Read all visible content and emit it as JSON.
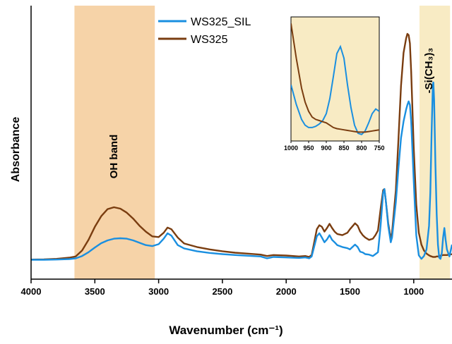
{
  "chart_data": {
    "type": "line",
    "xlabel": "Wavenumber (cm⁻¹)",
    "ylabel": "Absorbance",
    "xlim": [
      4000,
      700
    ],
    "x_reversed": true,
    "ylim": [
      0,
      1
    ],
    "y_ticks_shown": false,
    "x_ticks": [
      4000,
      3500,
      3000,
      2500,
      2000,
      1500,
      1000
    ],
    "grid": false,
    "legend_position": "top-center",
    "bands": [
      {
        "label": "OH band",
        "from": 3660,
        "to": 3030,
        "color": "#f6d3a8"
      },
      {
        "label": "-Si(CH₃)₃",
        "from": 955,
        "to": 715,
        "color": "#f8ebc4"
      }
    ],
    "series": [
      {
        "name": "WS325_SIL",
        "color": "#1a8fe0",
        "x": [
          4000,
          3900,
          3800,
          3700,
          3650,
          3600,
          3550,
          3500,
          3450,
          3400,
          3350,
          3300,
          3250,
          3200,
          3150,
          3100,
          3050,
          3000,
          2960,
          2930,
          2900,
          2850,
          2800,
          2700,
          2600,
          2500,
          2400,
          2300,
          2200,
          2150,
          2100,
          2000,
          1900,
          1850,
          1820,
          1800,
          1760,
          1740,
          1720,
          1700,
          1680,
          1660,
          1640,
          1620,
          1600,
          1560,
          1520,
          1500,
          1460,
          1440,
          1420,
          1400,
          1380,
          1350,
          1320,
          1300,
          1280,
          1260,
          1240,
          1230,
          1220,
          1200,
          1180,
          1170,
          1160,
          1140,
          1120,
          1100,
          1080,
          1060,
          1050,
          1040,
          1030,
          1020,
          1000,
          980,
          960,
          940,
          920,
          900,
          880,
          870,
          860,
          850,
          846,
          840,
          830,
          820,
          810,
          800,
          790,
          780,
          770,
          760,
          750,
          740,
          720,
          700
        ],
        "y": [
          0.046,
          0.046,
          0.047,
          0.049,
          0.052,
          0.062,
          0.078,
          0.098,
          0.116,
          0.128,
          0.135,
          0.137,
          0.135,
          0.128,
          0.118,
          0.108,
          0.104,
          0.112,
          0.135,
          0.158,
          0.148,
          0.108,
          0.094,
          0.082,
          0.075,
          0.07,
          0.066,
          0.063,
          0.06,
          0.052,
          0.058,
          0.056,
          0.054,
          0.056,
          0.052,
          0.06,
          0.145,
          0.158,
          0.14,
          0.12,
          0.132,
          0.15,
          0.13,
          0.12,
          0.108,
          0.1,
          0.095,
          0.09,
          0.11,
          0.1,
          0.08,
          0.077,
          0.07,
          0.068,
          0.062,
          0.07,
          0.078,
          0.19,
          0.33,
          0.345,
          0.3,
          0.19,
          0.12,
          0.14,
          0.19,
          0.29,
          0.43,
          0.56,
          0.63,
          0.68,
          0.7,
          0.715,
          0.7,
          0.63,
          0.38,
          0.15,
          0.065,
          0.05,
          0.062,
          0.09,
          0.19,
          0.33,
          0.58,
          0.785,
          0.795,
          0.72,
          0.45,
          0.24,
          0.11,
          0.055,
          0.05,
          0.075,
          0.14,
          0.18,
          0.13,
          0.09,
          0.06,
          0.11
        ]
      },
      {
        "name": "WS325",
        "color": "#7a3d10",
        "x": [
          4000,
          3900,
          3800,
          3700,
          3650,
          3600,
          3550,
          3500,
          3450,
          3400,
          3350,
          3300,
          3250,
          3200,
          3150,
          3100,
          3050,
          3000,
          2960,
          2930,
          2900,
          2850,
          2800,
          2700,
          2600,
          2500,
          2400,
          2300,
          2200,
          2150,
          2100,
          2000,
          1900,
          1850,
          1820,
          1800,
          1760,
          1740,
          1720,
          1700,
          1680,
          1660,
          1640,
          1620,
          1600,
          1560,
          1520,
          1500,
          1460,
          1440,
          1420,
          1400,
          1380,
          1350,
          1320,
          1300,
          1280,
          1260,
          1240,
          1230,
          1220,
          1200,
          1180,
          1170,
          1160,
          1140,
          1120,
          1100,
          1080,
          1060,
          1050,
          1040,
          1030,
          1020,
          1000,
          980,
          960,
          940,
          920,
          900,
          880,
          870,
          860,
          850,
          846,
          840,
          830,
          820,
          810,
          800,
          790,
          780,
          770,
          760,
          750,
          740,
          720,
          700
        ],
        "y": [
          0.047,
          0.048,
          0.05,
          0.055,
          0.06,
          0.085,
          0.13,
          0.185,
          0.23,
          0.26,
          0.268,
          0.262,
          0.245,
          0.22,
          0.19,
          0.165,
          0.145,
          0.142,
          0.16,
          0.182,
          0.175,
          0.14,
          0.115,
          0.1,
          0.09,
          0.082,
          0.076,
          0.072,
          0.068,
          0.062,
          0.066,
          0.064,
          0.06,
          0.062,
          0.058,
          0.066,
          0.175,
          0.192,
          0.185,
          0.165,
          0.18,
          0.198,
          0.18,
          0.165,
          0.155,
          0.15,
          0.16,
          0.175,
          0.2,
          0.19,
          0.165,
          0.15,
          0.14,
          0.13,
          0.135,
          0.15,
          0.17,
          0.26,
          0.34,
          0.345,
          0.3,
          0.2,
          0.135,
          0.16,
          0.22,
          0.34,
          0.55,
          0.78,
          0.92,
          0.98,
          1.0,
          0.995,
          0.96,
          0.84,
          0.52,
          0.28,
          0.16,
          0.11,
          0.085,
          0.072,
          0.065,
          0.062,
          0.06,
          0.058,
          0.058,
          0.058,
          0.058,
          0.06,
          0.06,
          0.062,
          0.064,
          0.065,
          0.066,
          0.066,
          0.066,
          0.066,
          0.068,
          0.07
        ]
      }
    ],
    "inset": {
      "xlim": [
        1000,
        750
      ],
      "x_reversed": true,
      "x_ticks": [
        1000,
        950,
        900,
        850,
        800,
        750
      ],
      "background": "#f8ebc4",
      "series": [
        {
          "name": "WS325_SIL",
          "color": "#1a8fe0",
          "x": [
            1000,
            985,
            970,
            960,
            950,
            940,
            930,
            920,
            910,
            900,
            890,
            880,
            870,
            860,
            850,
            840,
            830,
            820,
            810,
            800,
            790,
            780,
            770,
            760,
            750
          ],
          "y": [
            0.45,
            0.28,
            0.15,
            0.1,
            0.08,
            0.08,
            0.09,
            0.11,
            0.14,
            0.2,
            0.33,
            0.52,
            0.72,
            0.78,
            0.68,
            0.45,
            0.25,
            0.1,
            0.03,
            0.02,
            0.05,
            0.12,
            0.2,
            0.24,
            0.22
          ]
        },
        {
          "name": "WS325",
          "color": "#7a3d10",
          "x": [
            1000,
            985,
            970,
            960,
            950,
            940,
            930,
            920,
            910,
            900,
            890,
            880,
            870,
            860,
            850,
            840,
            830,
            820,
            810,
            800,
            790,
            780,
            770,
            760,
            750
          ],
          "y": [
            0.98,
            0.68,
            0.42,
            0.3,
            0.22,
            0.17,
            0.15,
            0.14,
            0.13,
            0.12,
            0.1,
            0.08,
            0.07,
            0.065,
            0.06,
            0.055,
            0.05,
            0.045,
            0.04,
            0.04,
            0.04,
            0.045,
            0.05,
            0.055,
            0.06
          ]
        }
      ]
    }
  }
}
